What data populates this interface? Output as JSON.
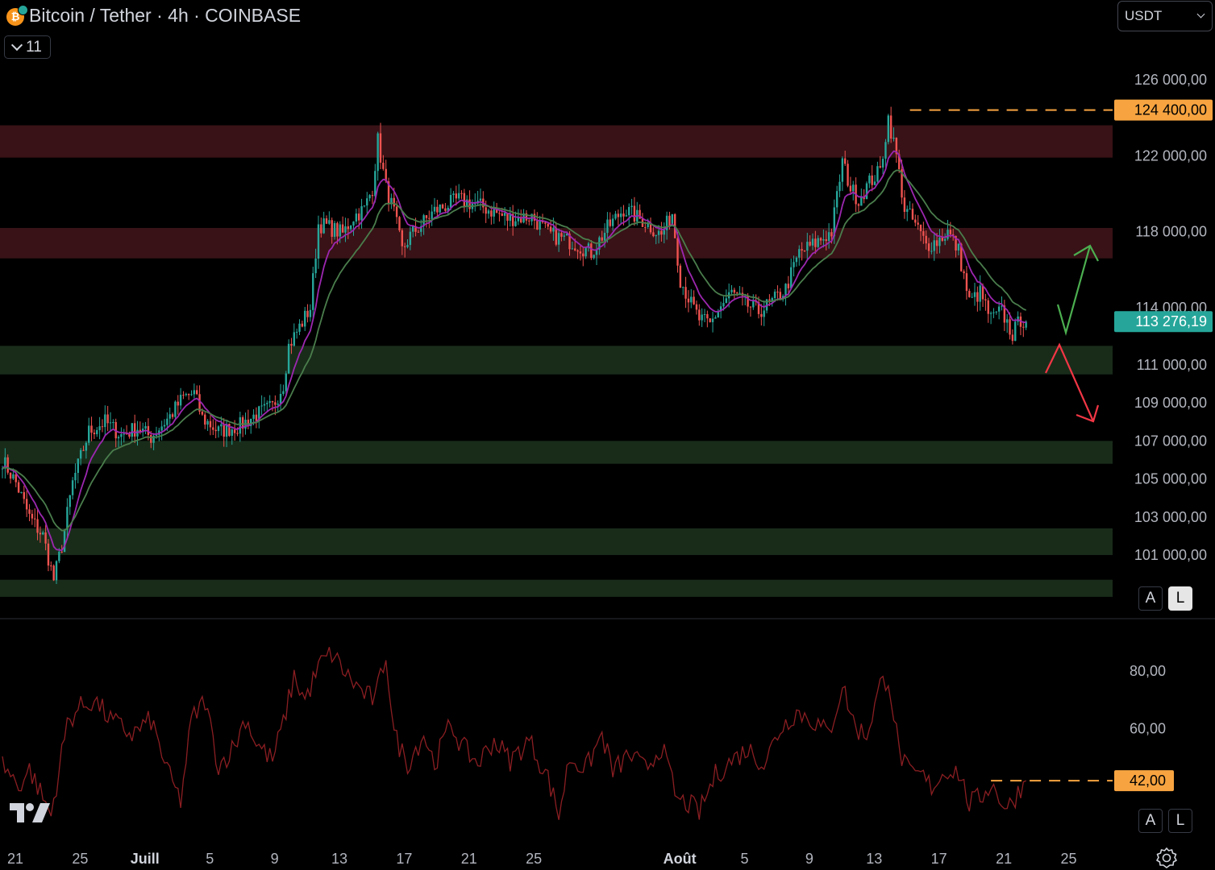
{
  "header": {
    "title": "Bitcoin / Tether · 4h · COINBASE",
    "indicators_count": "11",
    "currency": "USDT"
  },
  "buttons": {
    "auto": "A",
    "log": "L"
  },
  "chart_data": {
    "type": "candlestick",
    "price_axis": {
      "ylim": [
        98500,
        126800
      ],
      "ticks": [
        {
          "value": 126000,
          "label": "126 000,00"
        },
        {
          "value": 122000,
          "label": "122 000,00"
        },
        {
          "value": 118000,
          "label": "118 000,00"
        },
        {
          "value": 114000,
          "label": "114 000,00"
        },
        {
          "value": 111000,
          "label": "111 000,00"
        },
        {
          "value": 109000,
          "label": "109 000,00"
        },
        {
          "value": 107000,
          "label": "107 000,00"
        },
        {
          "value": 105000,
          "label": "105 000,00"
        },
        {
          "value": 103000,
          "label": "103 000,00"
        },
        {
          "value": 101000,
          "label": "101 000,00"
        }
      ]
    },
    "x_axis": {
      "ticks": [
        {
          "i": 0,
          "label": "21"
        },
        {
          "i": 24,
          "label": "25"
        },
        {
          "i": 48,
          "label": "Juill",
          "bold": true
        },
        {
          "i": 72,
          "label": "5"
        },
        {
          "i": 96,
          "label": "9"
        },
        {
          "i": 120,
          "label": "13"
        },
        {
          "i": 144,
          "label": "17"
        },
        {
          "i": 168,
          "label": "21"
        },
        {
          "i": 192,
          "label": "25"
        },
        {
          "i": 246,
          "label": "Août",
          "bold": true
        },
        {
          "i": 270,
          "label": "5"
        },
        {
          "i": 294,
          "label": "9"
        },
        {
          "i": 318,
          "label": "13"
        },
        {
          "i": 342,
          "label": "17"
        },
        {
          "i": 366,
          "label": "21"
        },
        {
          "i": 390,
          "label": "25"
        }
      ],
      "total_slots": 400,
      "candle_count": 380
    },
    "resistance_zones": [
      [
        121900,
        123600
      ],
      [
        116600,
        118200
      ]
    ],
    "support_zones": [
      [
        110500,
        112000
      ],
      [
        105800,
        107000
      ],
      [
        101000,
        102400
      ],
      [
        98800,
        99700
      ]
    ],
    "markers": {
      "high": {
        "value": 124400,
        "label": "124 400,00"
      },
      "last": {
        "value": 113276.19,
        "label": "113 276,19"
      }
    },
    "key_points": [
      [
        0,
        106000
      ],
      [
        5,
        104800
      ],
      [
        10,
        103000
      ],
      [
        15,
        102000
      ],
      [
        19,
        99700
      ],
      [
        22,
        101500
      ],
      [
        26,
        104800
      ],
      [
        32,
        107500
      ],
      [
        38,
        108000
      ],
      [
        44,
        107300
      ],
      [
        50,
        107700
      ],
      [
        55,
        107200
      ],
      [
        62,
        108300
      ],
      [
        67,
        109300
      ],
      [
        71,
        109500
      ],
      [
        74,
        108200
      ],
      [
        80,
        107500
      ],
      [
        88,
        107800
      ],
      [
        93,
        108300
      ],
      [
        100,
        108800
      ],
      [
        104,
        110000
      ],
      [
        106,
        112000
      ],
      [
        114,
        114000
      ],
      [
        117,
        118400
      ],
      [
        120,
        118300
      ],
      [
        126,
        117900
      ],
      [
        130,
        118800
      ],
      [
        134,
        119200
      ],
      [
        137,
        120300
      ],
      [
        139,
        122800
      ],
      [
        142,
        120300
      ],
      [
        145,
        119000
      ],
      [
        148,
        117000
      ],
      [
        151,
        117800
      ],
      [
        160,
        119100
      ],
      [
        169,
        119700
      ],
      [
        178,
        119300
      ],
      [
        187,
        118700
      ],
      [
        196,
        118800
      ],
      [
        202,
        117900
      ],
      [
        212,
        117400
      ],
      [
        218,
        116900
      ],
      [
        224,
        118200
      ],
      [
        230,
        119200
      ],
      [
        238,
        118500
      ],
      [
        244,
        117800
      ],
      [
        248,
        119000
      ],
      [
        251,
        115500
      ],
      [
        255,
        114200
      ],
      [
        258,
        113400
      ],
      [
        262,
        113100
      ],
      [
        265,
        113900
      ],
      [
        270,
        114800
      ],
      [
        275,
        114200
      ],
      [
        280,
        113800
      ],
      [
        285,
        114300
      ],
      [
        290,
        115000
      ],
      [
        295,
        116900
      ],
      [
        300,
        117300
      ],
      [
        303,
        117600
      ],
      [
        307,
        118000
      ],
      [
        311,
        121700
      ],
      [
        314,
        120300
      ],
      [
        317,
        119700
      ],
      [
        321,
        120600
      ],
      [
        325,
        121200
      ],
      [
        328,
        124000
      ],
      [
        331,
        122000
      ],
      [
        334,
        119200
      ],
      [
        338,
        118400
      ],
      [
        342,
        117300
      ],
      [
        346,
        117500
      ],
      [
        350,
        118000
      ],
      [
        354,
        117000
      ],
      [
        358,
        114300
      ],
      [
        362,
        114800
      ],
      [
        366,
        113400
      ],
      [
        370,
        113800
      ],
      [
        374,
        112600
      ],
      [
        377,
        113400
      ],
      [
        379,
        113276
      ]
    ],
    "oscillator": {
      "ylim": [
        25,
        92
      ],
      "ticks": [
        {
          "value": 80,
          "label": "80,00"
        },
        {
          "value": 60,
          "label": "60,00"
        }
      ],
      "marker": {
        "value": 42,
        "label": "42,00"
      },
      "key_points": [
        [
          0,
          48
        ],
        [
          6,
          40
        ],
        [
          10,
          46
        ],
        [
          14,
          38
        ],
        [
          18,
          30
        ],
        [
          24,
          62
        ],
        [
          28,
          67
        ],
        [
          34,
          70
        ],
        [
          40,
          63
        ],
        [
          48,
          58
        ],
        [
          55,
          63
        ],
        [
          62,
          43
        ],
        [
          66,
          35
        ],
        [
          70,
          63
        ],
        [
          75,
          70
        ],
        [
          80,
          47
        ],
        [
          86,
          54
        ],
        [
          90,
          64
        ],
        [
          94,
          55
        ],
        [
          100,
          49
        ],
        [
          104,
          62
        ],
        [
          108,
          78
        ],
        [
          112,
          70
        ],
        [
          118,
          83
        ],
        [
          122,
          86
        ],
        [
          128,
          78
        ],
        [
          134,
          72
        ],
        [
          138,
          70
        ],
        [
          142,
          86
        ],
        [
          145,
          58
        ],
        [
          150,
          48
        ],
        [
          156,
          58
        ],
        [
          160,
          48
        ],
        [
          166,
          62
        ],
        [
          170,
          54
        ],
        [
          176,
          48
        ],
        [
          182,
          56
        ],
        [
          188,
          49
        ],
        [
          195,
          56
        ],
        [
          202,
          43
        ],
        [
          206,
          30
        ],
        [
          210,
          50
        ],
        [
          216,
          46
        ],
        [
          222,
          58
        ],
        [
          226,
          45
        ],
        [
          232,
          51
        ],
        [
          238,
          46
        ],
        [
          244,
          54
        ],
        [
          250,
          35
        ],
        [
          254,
          34
        ],
        [
          258,
          31
        ],
        [
          264,
          44
        ],
        [
          270,
          49
        ],
        [
          276,
          53
        ],
        [
          282,
          48
        ],
        [
          288,
          60
        ],
        [
          294,
          66
        ],
        [
          300,
          63
        ],
        [
          306,
          58
        ],
        [
          311,
          75
        ],
        [
          316,
          60
        ],
        [
          320,
          58
        ],
        [
          325,
          75
        ],
        [
          328,
          78
        ],
        [
          332,
          52
        ],
        [
          336,
          44
        ],
        [
          340,
          44
        ],
        [
          344,
          40
        ],
        [
          350,
          46
        ],
        [
          354,
          45
        ],
        [
          358,
          34
        ],
        [
          362,
          36
        ],
        [
          366,
          41
        ],
        [
          372,
          32
        ],
        [
          376,
          38
        ],
        [
          379,
          42
        ]
      ]
    }
  }
}
